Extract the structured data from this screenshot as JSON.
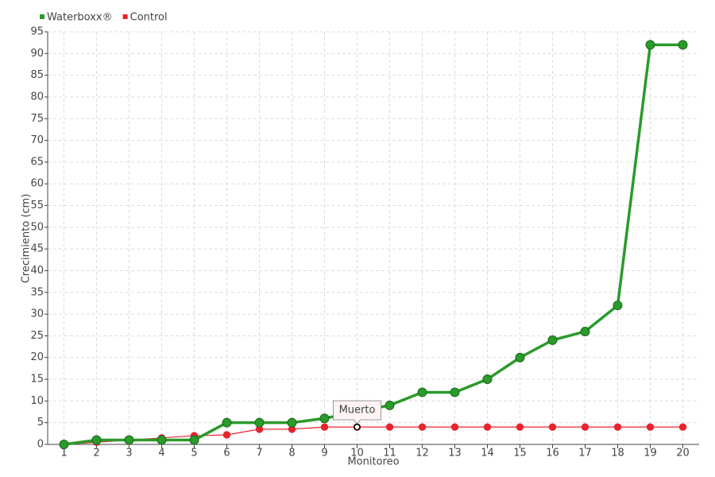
{
  "chart_data": {
    "type": "line",
    "x_label": "Monitoreo",
    "y_label": "Crecimiento (cm)",
    "categories": [
      "1",
      "2",
      "3",
      "4",
      "5",
      "6",
      "7",
      "8",
      "9",
      "10",
      "11",
      "12",
      "13",
      "14",
      "15",
      "16",
      "17",
      "18",
      "19",
      "20"
    ],
    "series": [
      {
        "name": "Waterboxx®",
        "color": "#2a9a2a",
        "values": [
          0,
          1,
          1,
          1,
          1,
          5,
          5,
          5,
          6,
          7.5,
          9,
          12,
          12,
          15,
          20,
          24,
          26,
          32,
          92,
          92
        ]
      },
      {
        "name": "Control",
        "color": "#e8232f",
        "values": [
          0,
          0.5,
          1,
          1.5,
          2,
          2.2,
          3.5,
          3.5,
          4,
          4,
          4,
          4,
          4,
          4,
          4,
          4,
          4,
          4,
          4,
          4
        ]
      }
    ],
    "ylim": [
      0,
      95
    ],
    "yticks": [
      0,
      5,
      10,
      15,
      20,
      25,
      30,
      35,
      40,
      45,
      50,
      55,
      60,
      65,
      70,
      75,
      80,
      85,
      90,
      95
    ],
    "grid": true,
    "legend": "top-left",
    "annotations": [
      {
        "text": "Muerto",
        "x": "10",
        "y": 4
      }
    ]
  }
}
